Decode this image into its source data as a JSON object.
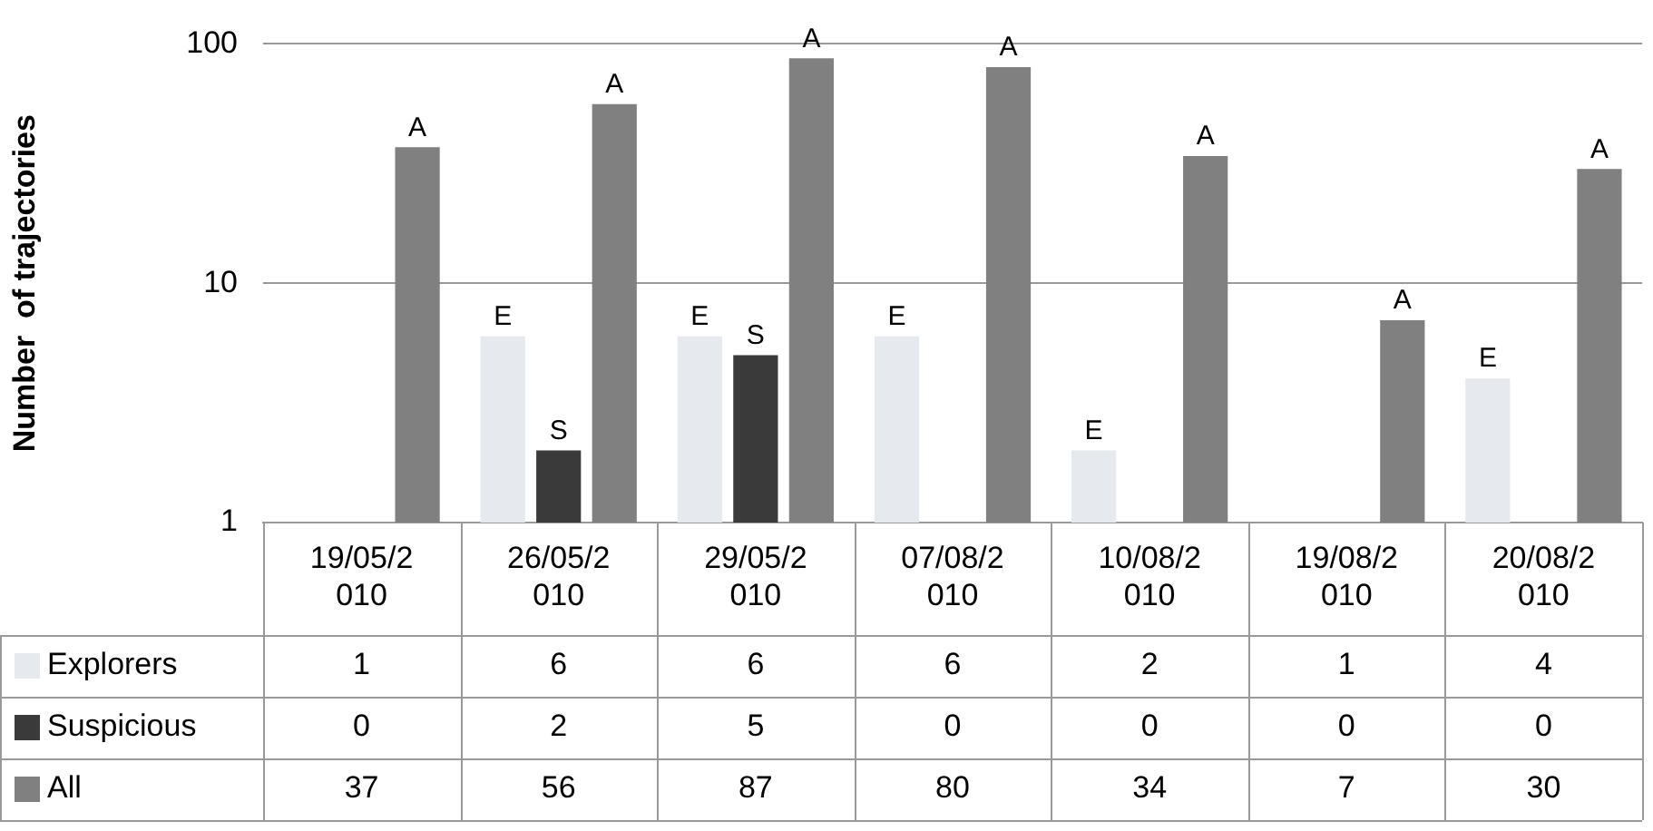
{
  "chart_data": {
    "type": "bar",
    "ylabel": "Number  of trajectories",
    "categories": [
      "19/05/2010",
      "26/05/2010",
      "29/05/2010",
      "07/08/2010",
      "10/08/2010",
      "19/08/2010",
      "20/08/2010"
    ],
    "series": [
      {
        "name": "Explorers",
        "color": "#e6e9ee",
        "values": [
          1,
          6,
          6,
          6,
          2,
          1,
          4
        ],
        "value_labels": [
          "1",
          "6",
          "6",
          "6",
          "2",
          "1",
          "4"
        ]
      },
      {
        "name": "Suspicious",
        "color": "#3a3a3a",
        "values": [
          null,
          2,
          5,
          null,
          null,
          null,
          null
        ],
        "value_labels": [
          "0",
          "2",
          "5",
          "0",
          "0",
          "0",
          "0"
        ]
      },
      {
        "name": "All",
        "color": "#808080",
        "values": [
          37,
          56,
          87,
          80,
          34,
          7,
          30
        ],
        "value_labels": [
          "37",
          "56",
          "87",
          "80",
          "34",
          "7",
          "30"
        ]
      }
    ],
    "log": "y",
    "ylim": [
      1,
      100
    ],
    "yticks": [
      1,
      10,
      100
    ],
    "grid": "y",
    "legend": "bottom left",
    "annotations": [
      "A",
      "E",
      "S",
      "A",
      "E",
      "S",
      "A",
      "E",
      "A",
      "E",
      "A",
      "A",
      "E",
      "A"
    ]
  }
}
